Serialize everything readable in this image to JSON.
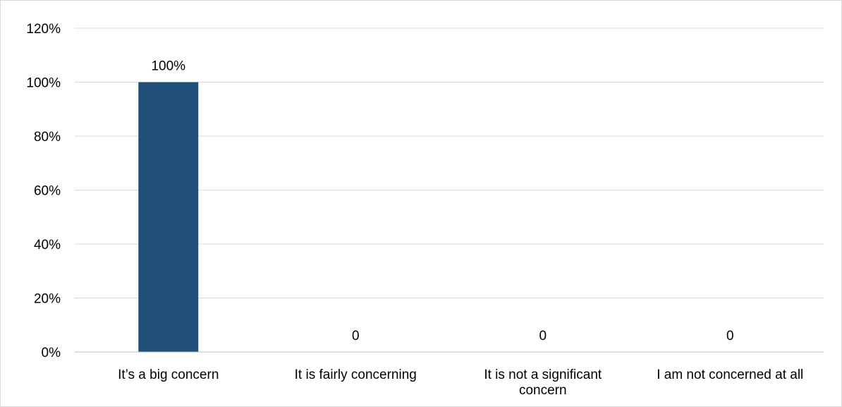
{
  "chart_data": {
    "type": "bar",
    "categories": [
      [
        "It’s a big concern"
      ],
      [
        "It is fairly concerning"
      ],
      [
        "It is not a significant",
        "concern"
      ],
      [
        "I am not concerned at all"
      ]
    ],
    "values": [
      1.0,
      0,
      0,
      0
    ],
    "data_labels": [
      "100%",
      "0",
      "0",
      "0"
    ],
    "title": "",
    "xlabel": "",
    "ylabel": "",
    "ylim": [
      0,
      1.2
    ],
    "yticks": [
      0,
      0.2,
      0.4,
      0.6,
      0.8,
      1.0,
      1.2
    ],
    "ytick_labels": [
      "0%",
      "20%",
      "40%",
      "60%",
      "80%",
      "100%",
      "120%"
    ],
    "grid": true,
    "legend": "none",
    "colors": {
      "bar": "#1f4e79",
      "grid": "#d9d9d9",
      "axis": "#bfbfbf",
      "text": "#000000"
    }
  }
}
